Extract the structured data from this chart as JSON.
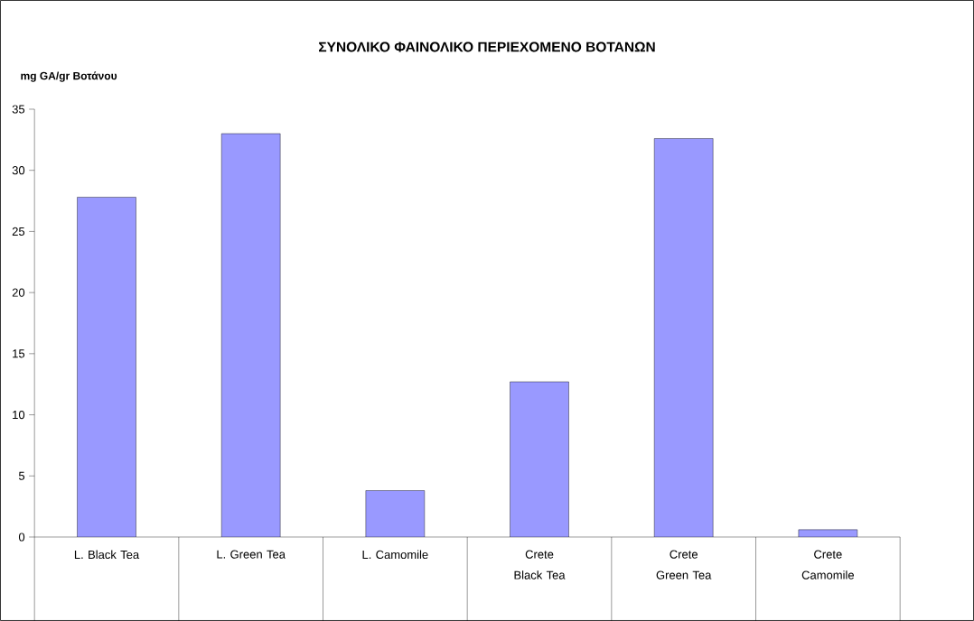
{
  "chart_data": {
    "type": "bar",
    "title": "ΣΥΝΟΛΙΚΟ ΦΑΙΝΟΛΙΚΟ ΠΕΡΙΕΧΟΜΕΝΟ ΒΟΤΑΝΩΝ",
    "ylabel": "mg GA/gr Βοτάνου",
    "categories": [
      "L. Black Tea",
      "L. Green Tea",
      "L. Camomile",
      "Crete Black Tea",
      "Crete Green Tea",
      "Crete Camomile"
    ],
    "values": [
      27.8,
      33.0,
      3.8,
      12.7,
      32.6,
      0.6
    ],
    "color": "#9999ff",
    "ylim": [
      0,
      35
    ],
    "yticks": [
      0,
      5,
      10,
      15,
      20,
      25,
      30,
      35
    ],
    "grid": false
  }
}
